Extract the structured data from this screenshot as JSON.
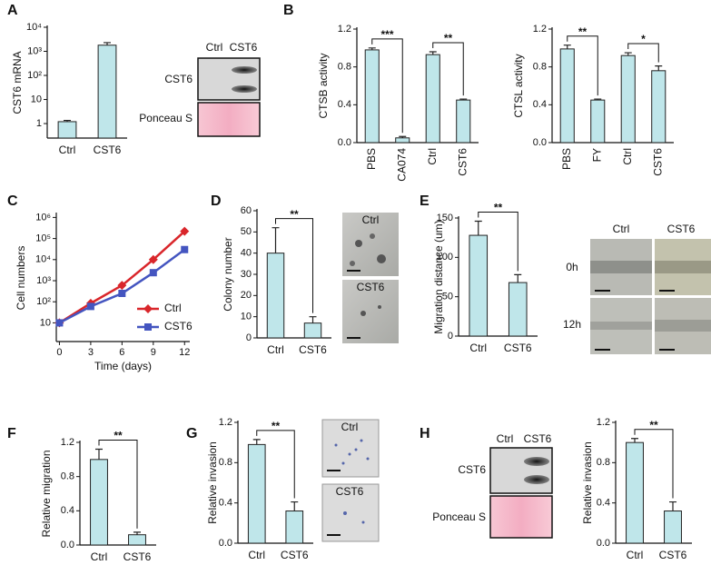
{
  "panel_letters": [
    "A",
    "B",
    "C",
    "D",
    "E",
    "F",
    "G",
    "H"
  ],
  "blots": [
    {
      "lanes": [
        "Ctrl",
        "CST6"
      ],
      "rows": [
        "CST6",
        "Ponceau S"
      ]
    },
    {
      "lanes": [
        "Ctrl",
        "CST6"
      ],
      "rows": [
        "CST6",
        "Ponceau S"
      ]
    }
  ],
  "micrographs": {
    "D": [
      "Ctrl",
      "CST6"
    ],
    "E": {
      "columns": [
        "Ctrl",
        "CST6"
      ],
      "rows": [
        "0h",
        "12h"
      ]
    },
    "G": [
      "Ctrl",
      "CST6"
    ]
  },
  "chart_data": [
    {
      "type": "bar",
      "y_label": "CST6 mRNA",
      "categories": [
        "Ctrl",
        "CST6"
      ],
      "values": [
        1.2,
        1800
      ],
      "errors": [
        0.15,
        500
      ],
      "color": "#bfe6ea",
      "log_scale": true,
      "ylim": [
        0.25,
        10000
      ],
      "yticks": [
        1,
        10,
        {
          "value": 100,
          "label": "10²"
        },
        {
          "value": 1000,
          "label": "10³"
        },
        {
          "value": 10000,
          "label": "10⁴"
        }
      ]
    },
    {
      "type": "bar",
      "y_label": "CTSB activity",
      "categories": [
        "PBS",
        "CA074",
        "Ctrl",
        "CST6"
      ],
      "values": [
        0.98,
        0.05,
        0.93,
        0.45
      ],
      "errors": [
        0.02,
        0.015,
        0.03,
        0.01
      ],
      "color": "#bfe6ea",
      "rotate_category_labels": true,
      "ylim": [
        0,
        1.2
      ],
      "yticks": [
        {
          "value": 0,
          "label": "0.0"
        },
        0.4,
        0.8,
        1.2
      ],
      "brackets": [
        {
          "label": "***",
          "between": [
            "PBS",
            "CA074"
          ]
        },
        {
          "label": "**",
          "between": [
            "Ctrl",
            "CST6"
          ]
        }
      ]
    },
    {
      "type": "bar",
      "y_label": "CTSL activity",
      "categories": [
        "PBS",
        "FY",
        "Ctrl",
        "CST6"
      ],
      "values": [
        0.99,
        0.45,
        0.92,
        0.76
      ],
      "errors": [
        0.04,
        0.01,
        0.03,
        0.05
      ],
      "color": "#bfe6ea",
      "rotate_category_labels": true,
      "ylim": [
        0,
        1.2
      ],
      "yticks": [
        {
          "value": 0,
          "label": "0.0"
        },
        0.4,
        0.8,
        1.2
      ],
      "brackets": [
        {
          "label": "**",
          "between": [
            "PBS",
            "FY"
          ]
        },
        {
          "label": "*",
          "between": [
            "Ctrl",
            "CST6"
          ]
        }
      ]
    },
    {
      "type": "line",
      "x_label": "Time (days)",
      "y_label": "Cell numbers",
      "x": [
        0,
        3,
        6,
        9,
        12
      ],
      "xlim": [
        -0.3,
        12.5
      ],
      "xticks": [
        0,
        3,
        6,
        9,
        12
      ],
      "log_scale": true,
      "ylim": [
        1.3,
        1400000
      ],
      "yticks": [
        10,
        {
          "value": 100,
          "label": "10²"
        },
        {
          "value": 1000,
          "label": "10³"
        },
        {
          "value": 10000,
          "label": "10⁴"
        },
        {
          "value": 100000,
          "label": "10⁵"
        },
        {
          "value": 1000000,
          "label": "10⁶"
        }
      ],
      "legend": "lower right",
      "series": [
        {
          "name": "Ctrl",
          "color": "#d9262b",
          "marker": "diamond",
          "values": [
            10,
            85,
            600,
            10000,
            220000
          ]
        },
        {
          "name": "CST6",
          "color": "#4455c0",
          "marker": "square",
          "values": [
            10,
            60,
            250,
            2400,
            30000
          ]
        }
      ]
    },
    {
      "type": "bar",
      "y_label": "Colony number",
      "categories": [
        "Ctrl",
        "CST6"
      ],
      "values": [
        40,
        7
      ],
      "errors": [
        12,
        3
      ],
      "color": "#bfe6ea",
      "ylim": [
        0,
        60
      ],
      "yticks": [
        0,
        10,
        20,
        30,
        40,
        50,
        60
      ],
      "brackets": [
        {
          "label": "**",
          "between": [
            "Ctrl",
            "CST6"
          ]
        }
      ]
    },
    {
      "type": "bar",
      "y_label": "Migration distance (um)",
      "categories": [
        "Ctrl",
        "CST6"
      ],
      "values": [
        128,
        68
      ],
      "errors": [
        18,
        10
      ],
      "color": "#bfe6ea",
      "ylim": [
        0,
        150
      ],
      "yticks": [
        0,
        50,
        100,
        150
      ],
      "brackets": [
        {
          "label": "**",
          "between": [
            "Ctrl",
            "CST6"
          ]
        }
      ]
    },
    {
      "type": "bar",
      "y_label": "Relative migration",
      "categories": [
        "Ctrl",
        "CST6"
      ],
      "values": [
        1.0,
        0.12
      ],
      "errors": [
        0.12,
        0.03
      ],
      "color": "#bfe6ea",
      "ylim": [
        0,
        1.2
      ],
      "yticks": [
        {
          "value": 0,
          "label": "0.0"
        },
        0.4,
        0.8,
        1.2
      ],
      "brackets": [
        {
          "label": "**",
          "between": [
            "Ctrl",
            "CST6"
          ]
        }
      ]
    },
    {
      "type": "bar",
      "y_label": "Relative invasion",
      "categories": [
        "Ctrl",
        "CST6"
      ],
      "values": [
        0.98,
        0.32
      ],
      "errors": [
        0.05,
        0.09
      ],
      "color": "#bfe6ea",
      "ylim": [
        0,
        1.2
      ],
      "yticks": [
        {
          "value": 0,
          "label": "0.0"
        },
        0.4,
        0.8,
        1.2
      ],
      "brackets": [
        {
          "label": "**",
          "between": [
            "Ctrl",
            "CST6"
          ]
        }
      ]
    },
    {
      "type": "bar",
      "y_label": "Relative invasion",
      "categories": [
        "Ctrl",
        "CST6"
      ],
      "values": [
        1.0,
        0.32
      ],
      "errors": [
        0.04,
        0.09
      ],
      "color": "#bfe6ea",
      "ylim": [
        0,
        1.2
      ],
      "yticks": [
        {
          "value": 0,
          "label": "0.0"
        },
        0.4,
        0.8,
        1.2
      ],
      "brackets": [
        {
          "label": "**",
          "between": [
            "Ctrl",
            "CST6"
          ]
        }
      ]
    }
  ]
}
